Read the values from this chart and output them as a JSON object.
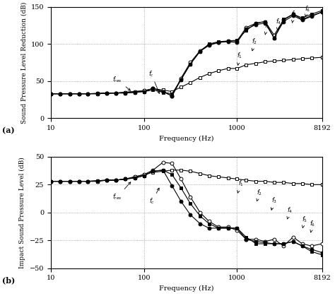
{
  "freqs_log": [
    10,
    12.5,
    16,
    20,
    25,
    31.5,
    40,
    50,
    63,
    80,
    100,
    125,
    160,
    200,
    250,
    315,
    400,
    500,
    630,
    800,
    1000,
    1250,
    1600,
    2000,
    2500,
    3150,
    4000,
    5000,
    6300,
    8192
  ],
  "panel_a": {
    "ylabel": "Sound Pressure Level Reduction (dB)",
    "xlabel": "Frequency (Hz)",
    "label": "(a)",
    "ylim": [
      0,
      150
    ],
    "yticks": [
      0,
      50,
      100,
      150
    ],
    "series": {
      "solid_filled_square": [
        33,
        33,
        33,
        33,
        33,
        33.5,
        34,
        34,
        34,
        35,
        36,
        38,
        35,
        33,
        52,
        73,
        90,
        100,
        103,
        104,
        105,
        118,
        128,
        130,
        108,
        133,
        140,
        135,
        140,
        145
      ],
      "solid_filled_circle": [
        33,
        33,
        33,
        33,
        33,
        33.5,
        34,
        34,
        34,
        35,
        36,
        40,
        36,
        30,
        52,
        73,
        90,
        98,
        102,
        103,
        102,
        120,
        126,
        128,
        108,
        130,
        138,
        132,
        137,
        143
      ],
      "open_circle": [
        33,
        33,
        33,
        33,
        33,
        33,
        33.5,
        34,
        35,
        36,
        37,
        40,
        36,
        30,
        54,
        75,
        91,
        99,
        102,
        104,
        104,
        122,
        128,
        130,
        112,
        132,
        140,
        133,
        138,
        143
      ],
      "open_square": [
        33,
        33,
        33,
        33,
        33,
        33,
        33.5,
        34,
        35,
        36,
        37,
        40,
        38,
        36,
        42,
        48,
        55,
        60,
        64,
        67,
        67,
        72,
        74,
        76,
        77,
        78,
        79,
        80,
        81,
        82
      ]
    }
  },
  "panel_b": {
    "ylabel": "Impact Sound Pressure Level (dB)",
    "xlabel": "Frequency (Hz)",
    "label": "(b)",
    "ylim": [
      -50,
      50
    ],
    "yticks": [
      -50,
      -25,
      0,
      25,
      50
    ],
    "series": {
      "solid_filled_square": [
        28,
        28,
        28,
        28,
        28,
        28.5,
        29,
        29,
        30,
        31,
        33,
        37,
        38,
        34,
        22,
        8,
        -3,
        -10,
        -14,
        -14,
        -14,
        -22,
        -28,
        -28,
        -28,
        -28,
        -26,
        -30,
        -35,
        -38
      ],
      "solid_filled_circle": [
        28,
        28,
        28,
        28,
        28,
        28.5,
        29,
        29,
        30,
        31,
        33,
        37,
        38,
        24,
        10,
        -2,
        -10,
        -14,
        -14,
        -14,
        -14,
        -24,
        -26,
        -27,
        -28,
        -28,
        -26,
        -30,
        -33,
        -36
      ],
      "open_circle": [
        28,
        28,
        28,
        28,
        28,
        28,
        29,
        29,
        30,
        32,
        34,
        38,
        45,
        44,
        30,
        14,
        0,
        -8,
        -13,
        -13,
        -16,
        -24,
        -24,
        -26,
        -24,
        -30,
        -22,
        -28,
        -30,
        -28
      ],
      "open_square": [
        28,
        28,
        28,
        28,
        28,
        28,
        29,
        29,
        30,
        32,
        34,
        36,
        37,
        38,
        38,
        37,
        35,
        33,
        32,
        31,
        30,
        29,
        28,
        28,
        27,
        27,
        26,
        26,
        25,
        25
      ]
    }
  }
}
